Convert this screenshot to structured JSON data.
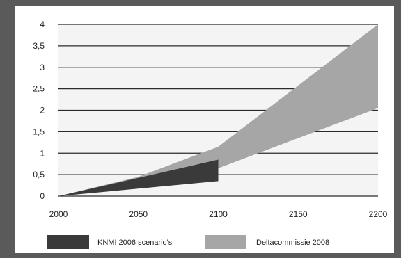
{
  "chart_data": {
    "type": "area",
    "x_ticks": [
      "2000",
      "2050",
      "2100",
      "2150",
      "2200"
    ],
    "y_ticks": [
      "0",
      "0,5",
      "1",
      "1,5",
      "2",
      "2,5",
      "3",
      "3,5",
      "4"
    ],
    "xlim": [
      2000,
      2200
    ],
    "ylim": [
      0,
      4
    ],
    "grid": "horizontal",
    "legend_position": "bottom",
    "series": [
      {
        "name": "Deltacommissie 2008",
        "color": "#a6a6a6",
        "x": [
          2000,
          2050,
          2100,
          2200
        ],
        "lower": [
          0,
          0.3,
          0.65,
          2.05
        ],
        "upper": [
          0,
          0.45,
          1.15,
          4.0
        ]
      },
      {
        "name": "KNMI 2006 scenario's",
        "color": "#3a3a3a",
        "x": [
          2000,
          2100
        ],
        "lower": [
          0,
          0.35
        ],
        "upper": [
          0,
          0.85
        ]
      }
    ]
  }
}
